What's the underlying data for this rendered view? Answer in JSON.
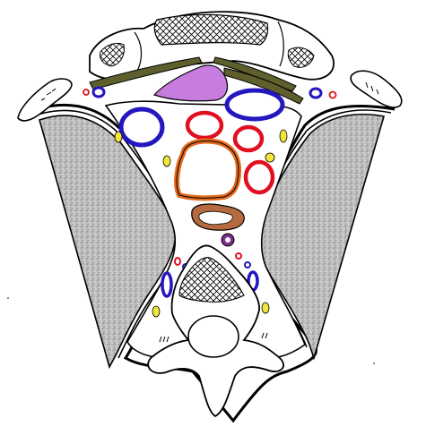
{
  "figure": {
    "kind": "anatomical cross-section drawing",
    "labels": []
  },
  "colors": {
    "outline": "#000000",
    "fill_white": "#ffffff",
    "muscle_grey": "#bdbdbd",
    "muscle_dark": "#8f8f8f",
    "olive_band": "#5e5f2c",
    "purple_mass": "#c77de0",
    "artery_red": "#e01020",
    "vein_blue": "#2417c0",
    "nerve_yellow": "#f2e63a",
    "airway_orange": "#e3691c",
    "esophagus_brown": "#b56a3f",
    "lymph_purple": "#7a2f8a"
  }
}
